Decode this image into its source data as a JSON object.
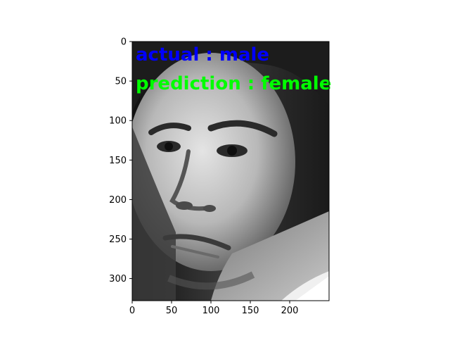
{
  "overlay": {
    "actual_text": "actual : male",
    "prediction_text": "prediction : female",
    "actual_color": "#0000ff",
    "prediction_color": "#00ff00"
  },
  "axes": {
    "x_range": [
      0,
      250
    ],
    "y_range": [
      0,
      328
    ],
    "x_ticks": [
      {
        "value": 0,
        "label": "0"
      },
      {
        "value": 50,
        "label": "50"
      },
      {
        "value": 100,
        "label": "100"
      },
      {
        "value": 150,
        "label": "150"
      },
      {
        "value": 200,
        "label": "200"
      }
    ],
    "y_ticks": [
      {
        "value": 0,
        "label": "0"
      },
      {
        "value": 50,
        "label": "50"
      },
      {
        "value": 100,
        "label": "100"
      },
      {
        "value": 150,
        "label": "150"
      },
      {
        "value": 200,
        "label": "200"
      },
      {
        "value": 250,
        "label": "250"
      },
      {
        "value": 300,
        "label": "300"
      }
    ]
  },
  "image": {
    "subject": "grayscale-face-photo"
  }
}
